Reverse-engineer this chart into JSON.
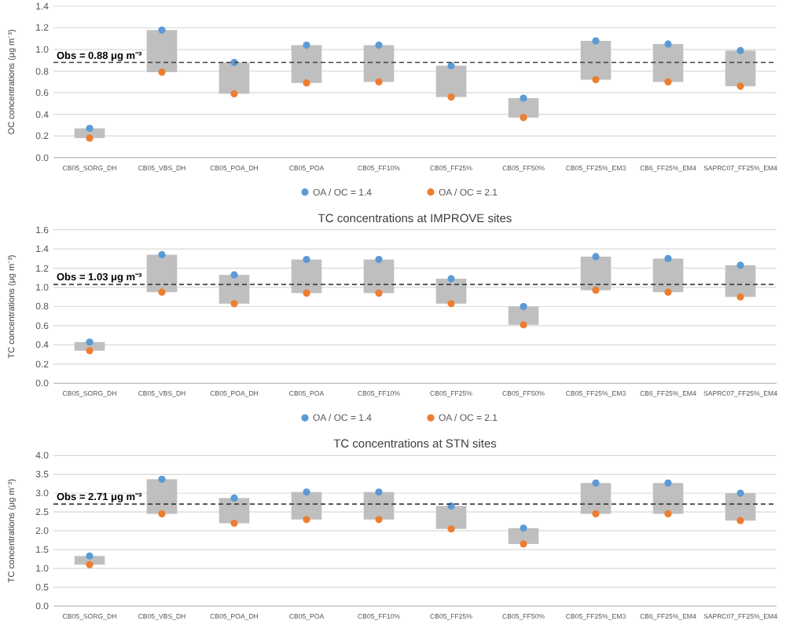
{
  "chart_data": [
    {
      "type": "bar",
      "ylabel": "OC concentrations (μg m⁻³)",
      "categories": [
        "CB05_SORG_DH",
        "CB05_VBS_DH",
        "CB05_POA_DH",
        "CB05_POA",
        "CB05_FF10%",
        "CB05_FF25%",
        "CB05_FF50%",
        "CB05_FF25%_EM3",
        "CB6_FF25%_EM4",
        "SAPRC07_FF25%_EM4"
      ],
      "ylim": [
        0,
        1.4
      ],
      "yticks": [
        {
          "value": 0,
          "label": "0.0"
        },
        {
          "value": 0.2,
          "label": "0.2"
        },
        {
          "value": 0.4,
          "label": "0.4"
        },
        {
          "value": 0.6,
          "label": "0.6"
        },
        {
          "value": 0.8,
          "label": "0.8"
        },
        {
          "value": 1,
          "label": "1.0"
        },
        {
          "value": 1.2,
          "label": "1.2"
        },
        {
          "value": 1.4,
          "label": "1.4"
        }
      ],
      "grid": "y",
      "legend": "bottom",
      "marker": "circle",
      "ref_lines": [
        {
          "axis": "y",
          "value": 0.88,
          "label": "Obs = 0.88 μg m⁻³",
          "color": "#404040",
          "line_style": "dashed"
        }
      ],
      "series": [
        {
          "color": "#bfbfbf",
          "base": [
            0.18,
            0.79,
            0.59,
            0.69,
            0.7,
            0.56,
            0.37,
            0.72,
            0.7,
            0.66
          ],
          "values": [
            0.09,
            0.39,
            0.29,
            0.35,
            0.34,
            0.29,
            0.18,
            0.36,
            0.35,
            0.33
          ]
        },
        {
          "type": "scatter",
          "name": "OA / OC = 1.4",
          "color": "#5b9bd5",
          "values": [
            0.27,
            1.18,
            0.88,
            1.04,
            1.04,
            0.85,
            0.55,
            1.08,
            1.05,
            0.99
          ]
        },
        {
          "type": "scatter",
          "name": "OA / OC = 2.1",
          "color": "#ed7d31",
          "values": [
            0.18,
            0.79,
            0.59,
            0.69,
            0.7,
            0.56,
            0.37,
            0.72,
            0.7,
            0.66
          ]
        }
      ]
    },
    {
      "type": "bar",
      "title": "TC concentrations at IMPROVE sites",
      "ylabel": "TC concentrations (μg m⁻³)",
      "categories": [
        "CB05_SORG_DH",
        "CB05_VBS_DH",
        "CB05_POA_DH",
        "CB05_POA",
        "CB05_FF10%",
        "CB05_FF25%",
        "CB05_FF50%",
        "CB05_FF25%_EM3",
        "CB6_FF25%_EM4",
        "SAPRC07_FF25%_EM4"
      ],
      "ylim": [
        0,
        1.6
      ],
      "yticks": [
        {
          "value": 0,
          "label": "0.0"
        },
        {
          "value": 0.2,
          "label": "0.2"
        },
        {
          "value": 0.4,
          "label": "0.4"
        },
        {
          "value": 0.6,
          "label": "0.6"
        },
        {
          "value": 0.8,
          "label": "0.8"
        },
        {
          "value": 1,
          "label": "1.0"
        },
        {
          "value": 1.2,
          "label": "1.2"
        },
        {
          "value": 1.4,
          "label": "1.4"
        },
        {
          "value": 1.6,
          "label": "1.6"
        }
      ],
      "grid": "y",
      "legend": "bottom",
      "marker": "circle",
      "ref_lines": [
        {
          "axis": "y",
          "value": 1.03,
          "label": "Obs = 1.03 μg m⁻³",
          "color": "#404040",
          "line_style": "dashed"
        }
      ],
      "series": [
        {
          "color": "#bfbfbf",
          "base": [
            0.34,
            0.95,
            0.83,
            0.94,
            0.94,
            0.83,
            0.61,
            0.97,
            0.95,
            0.9
          ],
          "values": [
            0.09,
            0.39,
            0.3,
            0.35,
            0.35,
            0.26,
            0.19,
            0.35,
            0.35,
            0.33
          ]
        },
        {
          "type": "scatter",
          "name": "OA / OC = 1.4",
          "color": "#5b9bd5",
          "values": [
            0.43,
            1.34,
            1.13,
            1.29,
            1.29,
            1.09,
            0.8,
            1.32,
            1.3,
            1.23
          ]
        },
        {
          "type": "scatter",
          "name": "OA / OC = 2.1",
          "color": "#ed7d31",
          "values": [
            0.34,
            0.95,
            0.83,
            0.94,
            0.94,
            0.83,
            0.61,
            0.97,
            0.95,
            0.9
          ]
        }
      ]
    },
    {
      "type": "bar",
      "title": "TC concentrations at STN sites",
      "ylabel": "TC concentrations (μg m⁻³)",
      "categories": [
        "CB05_SORG_DH",
        "CB05_VBS_DH",
        "CB05_POA_DH",
        "CB05_POA",
        "CB05_FF10%",
        "CB05_FF25%",
        "CB05_FF50%",
        "CB05_FF25%_EM3",
        "CB6_FF25%_EM4",
        "SAPRC07_FF25%_EM4"
      ],
      "ylim": [
        0,
        4
      ],
      "yticks": [
        {
          "value": 0,
          "label": "0.0"
        },
        {
          "value": 0.5,
          "label": "0.5"
        },
        {
          "value": 1,
          "label": "1.0"
        },
        {
          "value": 1.5,
          "label": "1.5"
        },
        {
          "value": 2,
          "label": "2.0"
        },
        {
          "value": 2.5,
          "label": "2.5"
        },
        {
          "value": 3,
          "label": "3.0"
        },
        {
          "value": 3.5,
          "label": "3.5"
        },
        {
          "value": 4,
          "label": "4.0"
        }
      ],
      "grid": "y",
      "marker": "circle",
      "ref_lines": [
        {
          "axis": "y",
          "value": 2.71,
          "label": "Obs = 2.71 μg m⁻³",
          "color": "#404040",
          "line_style": "dashed"
        }
      ],
      "series": [
        {
          "color": "#bfbfbf",
          "base": [
            1.1,
            2.45,
            2.2,
            2.3,
            2.3,
            2.05,
            1.65,
            2.45,
            2.45,
            2.27
          ],
          "values": [
            0.23,
            0.92,
            0.67,
            0.73,
            0.73,
            0.61,
            0.42,
            0.82,
            0.82,
            0.73
          ]
        },
        {
          "type": "scatter",
          "color": "#5b9bd5",
          "values": [
            1.33,
            3.37,
            2.87,
            3.03,
            3.03,
            2.66,
            2.07,
            3.27,
            3.27,
            3.0
          ]
        },
        {
          "type": "scatter",
          "color": "#ed7d31",
          "values": [
            1.1,
            2.45,
            2.2,
            2.3,
            2.3,
            2.05,
            1.65,
            2.45,
            2.45,
            2.27
          ]
        }
      ]
    }
  ]
}
